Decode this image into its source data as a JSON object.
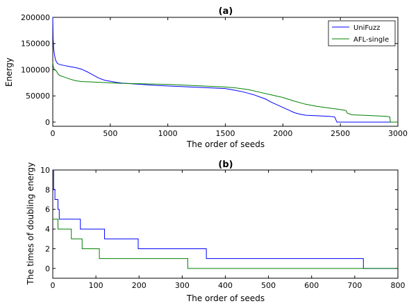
{
  "chart_data": [
    {
      "type": "line",
      "title": "(a)",
      "xlabel": "The order of seeds",
      "ylabel": "Energy",
      "xlim": [
        0,
        3000
      ],
      "ylim": [
        -8000,
        200000
      ],
      "xticks": [
        0,
        500,
        1000,
        1500,
        2000,
        2500,
        3000
      ],
      "yticks": [
        0,
        50000,
        100000,
        150000,
        200000
      ],
      "grid": false,
      "legend": "top-right",
      "series": [
        {
          "name": "UniFuzz",
          "color": "#0000ff",
          "points": [
            [
              0,
              200000
            ],
            [
              3,
              160000
            ],
            [
              8,
              140000
            ],
            [
              15,
              128000
            ],
            [
              25,
              118000
            ],
            [
              40,
              112000
            ],
            [
              60,
              110000
            ],
            [
              100,
              108000
            ],
            [
              150,
              106000
            ],
            [
              200,
              104000
            ],
            [
              250,
              101000
            ],
            [
              300,
              96000
            ],
            [
              350,
              90000
            ],
            [
              400,
              84000
            ],
            [
              450,
              80000
            ],
            [
              500,
              78000
            ],
            [
              550,
              76000
            ],
            [
              600,
              74500
            ],
            [
              700,
              73000
            ],
            [
              800,
              71500
            ],
            [
              900,
              70000
            ],
            [
              1000,
              69000
            ],
            [
              1100,
              68000
            ],
            [
              1200,
              67000
            ],
            [
              1300,
              66000
            ],
            [
              1400,
              65000
            ],
            [
              1500,
              64000
            ],
            [
              1550,
              62000
            ],
            [
              1600,
              60000
            ],
            [
              1650,
              58000
            ],
            [
              1700,
              55000
            ],
            [
              1750,
              52000
            ],
            [
              1800,
              48000
            ],
            [
              1850,
              44000
            ],
            [
              1900,
              38000
            ],
            [
              1950,
              33000
            ],
            [
              2000,
              28000
            ],
            [
              2050,
              23000
            ],
            [
              2100,
              18000
            ],
            [
              2150,
              15000
            ],
            [
              2200,
              13000
            ],
            [
              2300,
              12000
            ],
            [
              2400,
              11000
            ],
            [
              2450,
              10000
            ],
            [
              2460,
              5000
            ],
            [
              2470,
              0
            ],
            [
              2600,
              0
            ],
            [
              2800,
              0
            ],
            [
              3000,
              0
            ]
          ]
        },
        {
          "name": "AFL-single",
          "color": "#008000",
          "points": [
            [
              0,
              115000
            ],
            [
              5,
              105000
            ],
            [
              15,
              100000
            ],
            [
              30,
              98000
            ],
            [
              45,
              92000
            ],
            [
              60,
              89000
            ],
            [
              100,
              86000
            ],
            [
              150,
              82000
            ],
            [
              200,
              79000
            ],
            [
              250,
              77500
            ],
            [
              300,
              77000
            ],
            [
              400,
              76000
            ],
            [
              500,
              75000
            ],
            [
              600,
              74000
            ],
            [
              700,
              73500
            ],
            [
              800,
              73000
            ],
            [
              900,
              72500
            ],
            [
              1000,
              72000
            ],
            [
              1100,
              71000
            ],
            [
              1200,
              70000
            ],
            [
              1300,
              69000
            ],
            [
              1400,
              68000
            ],
            [
              1500,
              67000
            ],
            [
              1600,
              65000
            ],
            [
              1700,
              62000
            ],
            [
              1800,
              57000
            ],
            [
              1900,
              52000
            ],
            [
              2000,
              47000
            ],
            [
              2100,
              40000
            ],
            [
              2200,
              34000
            ],
            [
              2300,
              30000
            ],
            [
              2400,
              27000
            ],
            [
              2500,
              24000
            ],
            [
              2550,
              22000
            ],
            [
              2560,
              17000
            ],
            [
              2600,
              14000
            ],
            [
              2700,
              13000
            ],
            [
              2800,
              12000
            ],
            [
              2900,
              11000
            ],
            [
              2930,
              10000
            ],
            [
              2935,
              0
            ],
            [
              3000,
              0
            ]
          ]
        }
      ]
    },
    {
      "type": "line",
      "title": "(b)",
      "xlabel": "The order of seeds",
      "ylabel": "The times of doubling energy",
      "xlim": [
        0,
        800
      ],
      "ylim": [
        -1,
        10
      ],
      "xticks": [
        0,
        100,
        200,
        300,
        400,
        500,
        600,
        700,
        800
      ],
      "yticks": [
        0,
        2,
        4,
        6,
        8,
        10
      ],
      "grid": false,
      "series": [
        {
          "name": "UniFuzz",
          "color": "#0000ff",
          "points": [
            [
              0,
              10
            ],
            [
              2,
              10
            ],
            [
              2,
              8
            ],
            [
              5,
              8
            ],
            [
              5,
              7
            ],
            [
              12,
              7
            ],
            [
              12,
              6
            ],
            [
              15,
              6
            ],
            [
              15,
              5
            ],
            [
              64,
              5
            ],
            [
              64,
              4
            ],
            [
              120,
              4
            ],
            [
              120,
              3
            ],
            [
              198,
              3
            ],
            [
              198,
              2
            ],
            [
              356,
              2
            ],
            [
              356,
              1
            ],
            [
              720,
              1
            ],
            [
              720,
              0
            ],
            [
              800,
              0
            ]
          ]
        },
        {
          "name": "AFL-single",
          "color": "#008000",
          "points": [
            [
              0,
              5
            ],
            [
              12,
              5
            ],
            [
              12,
              4
            ],
            [
              43,
              4
            ],
            [
              43,
              3
            ],
            [
              68,
              3
            ],
            [
              68,
              2
            ],
            [
              108,
              2
            ],
            [
              108,
              1
            ],
            [
              313,
              1
            ],
            [
              313,
              0
            ],
            [
              800,
              0
            ]
          ]
        }
      ]
    }
  ]
}
